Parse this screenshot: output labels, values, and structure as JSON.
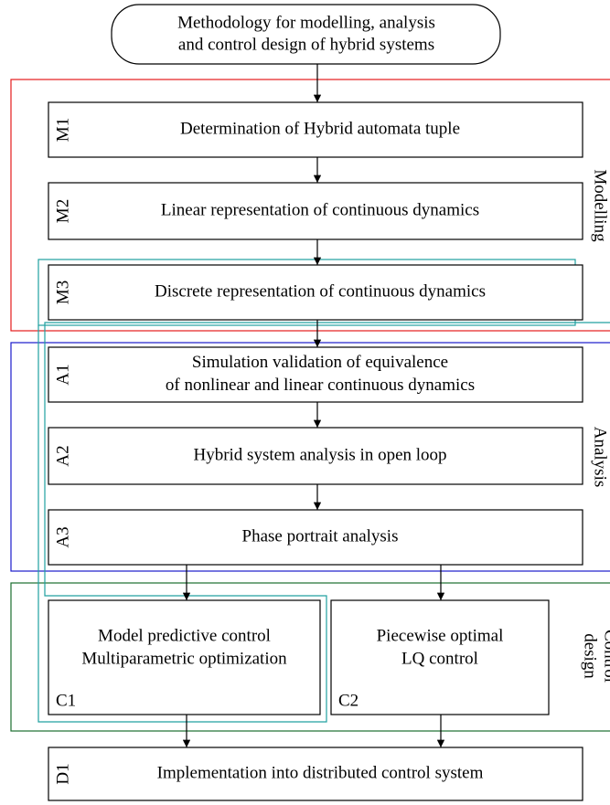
{
  "start": {
    "lines": [
      "Methodology for modelling, analysis",
      "and control design of hybrid systems"
    ]
  },
  "groups": [
    {
      "lines": [
        "Modelling"
      ]
    },
    {
      "lines": [
        "Analysis"
      ]
    },
    {
      "lines": [
        "Control",
        "design"
      ]
    }
  ],
  "steps": [
    {
      "id": "M1",
      "lines": [
        "Determination of Hybrid automata tuple"
      ]
    },
    {
      "id": "M2",
      "lines": [
        "Linear representation of continuous dynamics"
      ]
    },
    {
      "id": "M3",
      "lines": [
        "Discrete representation of continuous dynamics"
      ]
    },
    {
      "id": "A1",
      "lines": [
        "Simulation validation of equivalence",
        "of nonlinear and linear continuous dynamics"
      ]
    },
    {
      "id": "A2",
      "lines": [
        "Hybrid system analysis in open loop"
      ]
    },
    {
      "id": "A3",
      "lines": [
        "Phase portrait analysis"
      ]
    },
    {
      "id": "C1",
      "lines": [
        "Model predictive control",
        "Multiparametric optimization"
      ]
    },
    {
      "id": "C2",
      "lines": [
        "Piecewise optimal",
        "LQ control"
      ]
    },
    {
      "id": "D1",
      "lines": [
        "Implementation into distributed control system"
      ]
    }
  ]
}
